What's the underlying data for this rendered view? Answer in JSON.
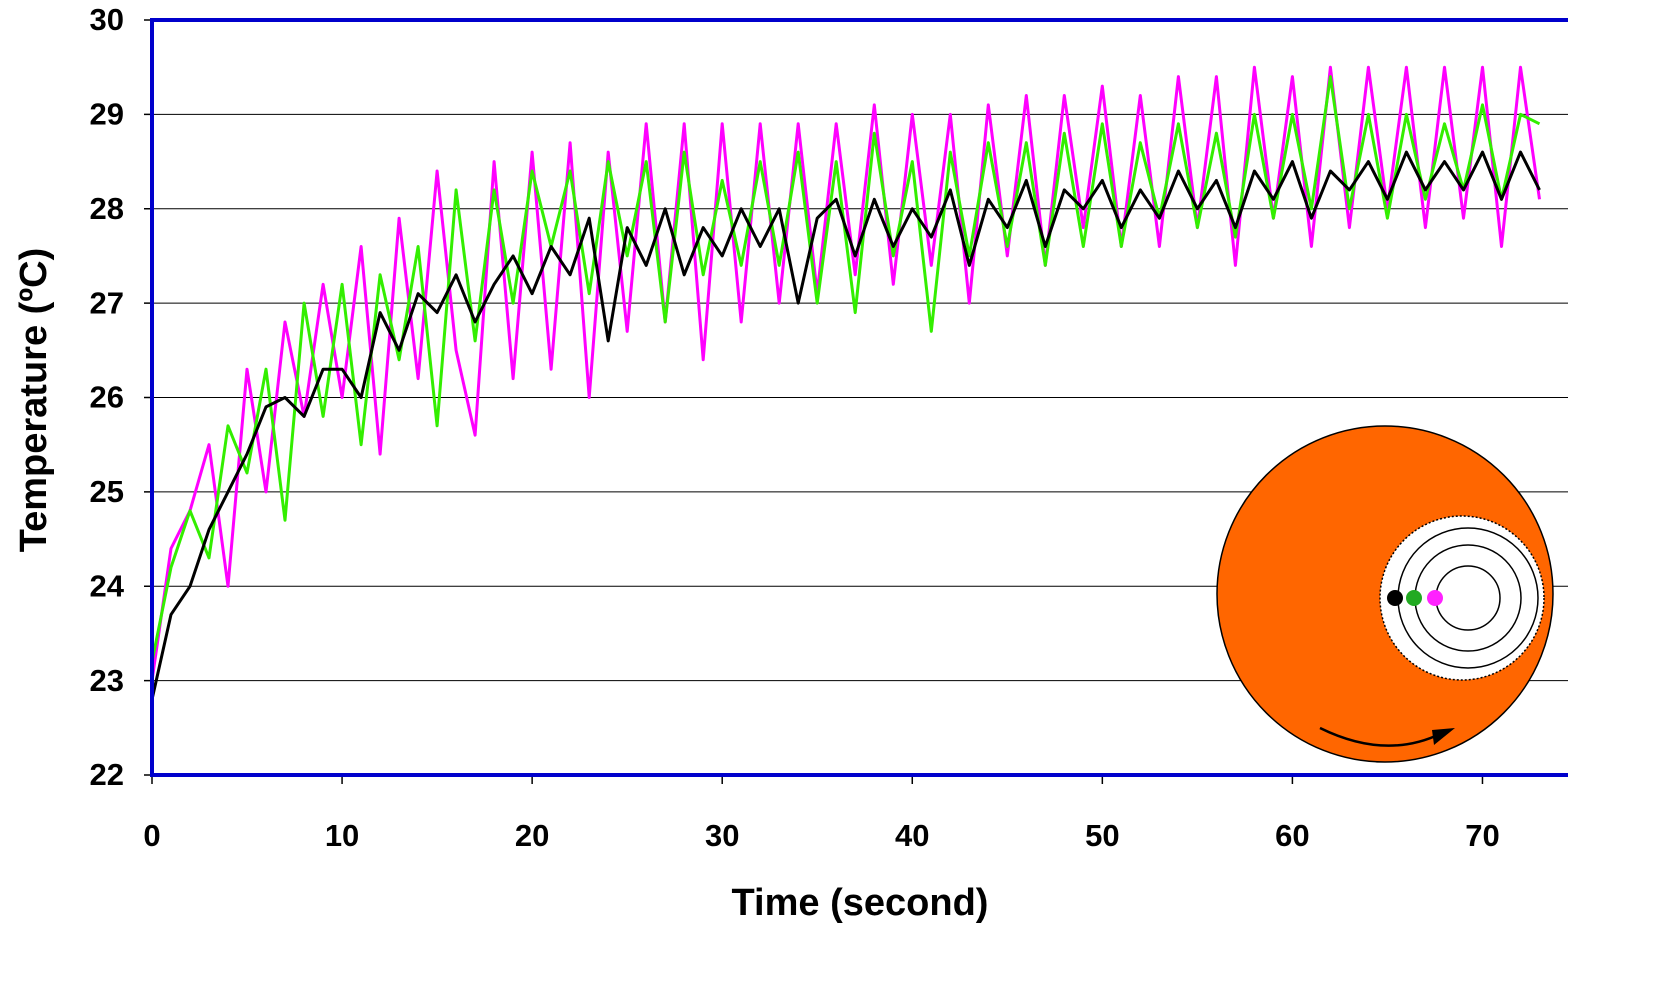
{
  "chart_data": {
    "type": "line",
    "x_label": "Time (second)",
    "y_label": "Temperature (ºC)",
    "x": [
      0,
      1,
      2,
      3,
      4,
      5,
      6,
      7,
      8,
      9,
      10,
      11,
      12,
      13,
      14,
      15,
      16,
      17,
      18,
      19,
      20,
      21,
      22,
      23,
      24,
      25,
      26,
      27,
      28,
      29,
      30,
      31,
      32,
      33,
      34,
      35,
      36,
      37,
      38,
      39,
      40,
      41,
      42,
      43,
      44,
      45,
      46,
      47,
      48,
      49,
      50,
      51,
      52,
      53,
      54,
      55,
      56,
      57,
      58,
      59,
      60,
      61,
      62,
      63,
      64,
      65,
      66,
      67,
      68,
      69,
      70,
      71,
      72,
      73
    ],
    "series": [
      {
        "color": "#ff00ff",
        "values": [
          23.0,
          24.4,
          24.8,
          25.5,
          24.0,
          26.3,
          25.0,
          26.8,
          25.8,
          27.2,
          26.0,
          27.6,
          25.4,
          27.9,
          26.2,
          28.4,
          26.5,
          25.6,
          28.5,
          26.2,
          28.6,
          26.3,
          28.7,
          26.0,
          28.6,
          26.7,
          28.9,
          26.8,
          28.9,
          26.4,
          28.9,
          26.8,
          28.9,
          27.0,
          28.9,
          27.1,
          28.9,
          27.3,
          29.1,
          27.2,
          29.0,
          27.4,
          29.0,
          27.0,
          29.1,
          27.5,
          29.2,
          27.4,
          29.2,
          27.8,
          29.3,
          27.6,
          29.2,
          27.6,
          29.4,
          27.8,
          29.4,
          27.4,
          29.5,
          27.9,
          29.4,
          27.6,
          29.5,
          27.8,
          29.5,
          28.0,
          29.5,
          27.8,
          29.5,
          27.9,
          29.5,
          27.6,
          29.5,
          28.1
        ]
      },
      {
        "color": "#33ee00",
        "values": [
          23.2,
          24.2,
          24.8,
          24.3,
          25.7,
          25.2,
          26.3,
          24.7,
          27.0,
          25.8,
          27.2,
          25.5,
          27.3,
          26.4,
          27.6,
          25.7,
          28.2,
          26.6,
          28.2,
          27.0,
          28.4,
          27.6,
          28.4,
          27.1,
          28.5,
          27.5,
          28.5,
          26.8,
          28.6,
          27.3,
          28.3,
          27.4,
          28.5,
          27.4,
          28.6,
          27.0,
          28.5,
          26.9,
          28.8,
          27.5,
          28.5,
          26.7,
          28.6,
          27.5,
          28.7,
          27.6,
          28.7,
          27.4,
          28.8,
          27.6,
          28.9,
          27.6,
          28.7,
          27.9,
          28.9,
          27.8,
          28.8,
          27.7,
          29.0,
          27.9,
          29.0,
          28.0,
          29.4,
          28.0,
          29.0,
          27.9,
          29.0,
          28.1,
          28.9,
          28.2,
          29.1,
          28.1,
          29.0,
          28.9
        ]
      },
      {
        "color": "#000000",
        "values": [
          22.8,
          23.7,
          24.0,
          24.6,
          25.0,
          25.4,
          25.9,
          26.0,
          25.8,
          26.3,
          26.3,
          26.0,
          26.9,
          26.5,
          27.1,
          26.9,
          27.3,
          26.8,
          27.2,
          27.5,
          27.1,
          27.6,
          27.3,
          27.9,
          26.6,
          27.8,
          27.4,
          28.0,
          27.3,
          27.8,
          27.5,
          28.0,
          27.6,
          28.0,
          27.0,
          27.9,
          28.1,
          27.5,
          28.1,
          27.6,
          28.0,
          27.7,
          28.2,
          27.4,
          28.1,
          27.8,
          28.3,
          27.6,
          28.2,
          28.0,
          28.3,
          27.8,
          28.2,
          27.9,
          28.4,
          28.0,
          28.3,
          27.8,
          28.4,
          28.1,
          28.5,
          27.9,
          28.4,
          28.2,
          28.5,
          28.1,
          28.6,
          28.2,
          28.5,
          28.2,
          28.6,
          28.1,
          28.6,
          28.2
        ]
      }
    ],
    "xlim": [
      0,
      74.5
    ],
    "ylim": [
      22,
      30
    ],
    "xticks": [
      0,
      10,
      20,
      30,
      40,
      50,
      60,
      70
    ],
    "yticks": [
      22,
      23,
      24,
      25,
      26,
      27,
      28,
      29,
      30
    ],
    "grid": true
  }
}
